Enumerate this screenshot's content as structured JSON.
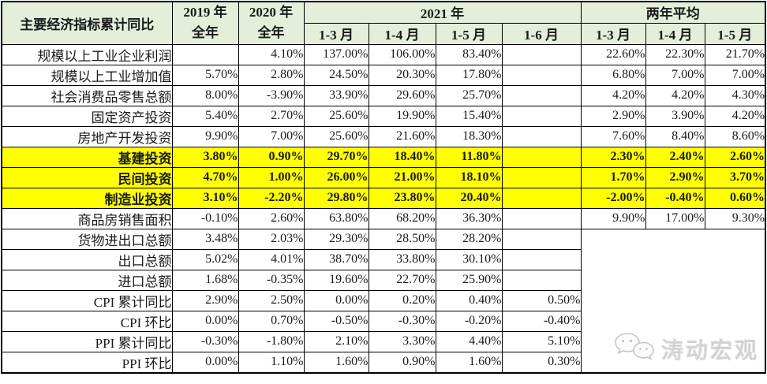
{
  "chart_data": {
    "type": "table",
    "title": "主要经济指标累计同比",
    "header": {
      "year_2019": [
        "2019 年",
        "全年"
      ],
      "year_2020": [
        "2020 年",
        "全年"
      ],
      "group_2021": "2021 年",
      "group_two_year_avg": "两年平均",
      "month_cols": [
        "1-3 月",
        "1-4 月",
        "1-5 月",
        "1-6 月",
        "1-3 月",
        "1-4 月",
        "1-5 月"
      ]
    },
    "rows": [
      {
        "label": "规模以上工业企业利润",
        "highlight": false,
        "values": [
          "",
          "4.10%",
          "137.00%",
          "106.00%",
          "83.40%",
          "",
          "22.60%",
          "22.30%",
          "21.70%"
        ]
      },
      {
        "label": "规模以上工业增加值",
        "highlight": false,
        "values": [
          "5.70%",
          "2.80%",
          "24.50%",
          "20.30%",
          "17.80%",
          "",
          "6.80%",
          "7.00%",
          "7.00%"
        ]
      },
      {
        "label": "社会消费品零售总额",
        "highlight": false,
        "values": [
          "8.00%",
          "-3.90%",
          "33.90%",
          "29.60%",
          "25.70%",
          "",
          "4.20%",
          "4.20%",
          "4.30%"
        ]
      },
      {
        "label": "固定资产投资",
        "highlight": false,
        "values": [
          "5.40%",
          "2.70%",
          "25.60%",
          "19.90%",
          "15.40%",
          "",
          "2.90%",
          "3.90%",
          "4.20%"
        ]
      },
      {
        "label": "房地产开发投资",
        "highlight": false,
        "values": [
          "9.90%",
          "7.00%",
          "25.60%",
          "21.60%",
          "18.30%",
          "",
          "7.60%",
          "8.40%",
          "8.60%"
        ]
      },
      {
        "label": "基建投资",
        "highlight": true,
        "values": [
          "3.80%",
          "0.90%",
          "29.70%",
          "18.40%",
          "11.80%",
          "",
          "2.30%",
          "2.40%",
          "2.60%"
        ]
      },
      {
        "label": "民间投资",
        "highlight": true,
        "values": [
          "4.70%",
          "1.00%",
          "26.00%",
          "21.00%",
          "18.10%",
          "",
          "1.70%",
          "2.90%",
          "3.70%"
        ]
      },
      {
        "label": "制造业投资",
        "highlight": true,
        "values": [
          "3.10%",
          "-2.20%",
          "29.80%",
          "23.80%",
          "20.40%",
          "",
          "-2.00%",
          "-0.40%",
          "0.60%"
        ]
      },
      {
        "label": "商品房销售面积",
        "highlight": false,
        "values": [
          "-0.10%",
          "2.60%",
          "63.80%",
          "68.20%",
          "36.30%",
          "",
          "9.90%",
          "17.00%",
          "9.30%"
        ]
      },
      {
        "label": "货物进出口总额",
        "highlight": false,
        "values": [
          "3.48%",
          "2.03%",
          "29.30%",
          "28.50%",
          "28.20%",
          ""
        ]
      },
      {
        "label": "出口总额",
        "highlight": false,
        "values": [
          "5.02%",
          "4.01%",
          "38.70%",
          "33.80%",
          "30.10%",
          ""
        ]
      },
      {
        "label": "进口总额",
        "highlight": false,
        "values": [
          "1.68%",
          "-0.35%",
          "19.60%",
          "22.70%",
          "25.90%",
          ""
        ]
      },
      {
        "label": "CPI 累计同比",
        "highlight": false,
        "values": [
          "2.90%",
          "2.50%",
          "0.00%",
          "0.20%",
          "0.40%",
          "0.50%"
        ]
      },
      {
        "label": "CPI 环比",
        "highlight": false,
        "values": [
          "0.00%",
          "0.70%",
          "-0.50%",
          "-0.30%",
          "-0.20%",
          "-0.40%"
        ]
      },
      {
        "label": "PPI 累计同比",
        "highlight": false,
        "values": [
          "-0.30%",
          "-1.80%",
          "2.10%",
          "3.30%",
          "4.40%",
          "5.10%"
        ]
      },
      {
        "label": "PPI 环比",
        "highlight": false,
        "values": [
          "0.00%",
          "1.10%",
          "1.60%",
          "0.90%",
          "1.60%",
          "0.30%"
        ]
      }
    ]
  },
  "watermark": {
    "text": "涛动宏观",
    "icon": "wechat-logo"
  },
  "colors": {
    "header_bg": "#e3efdb",
    "highlight_bg": "#ffff00",
    "border_color": "#000000",
    "watermark_gray": "#cccccc"
  }
}
